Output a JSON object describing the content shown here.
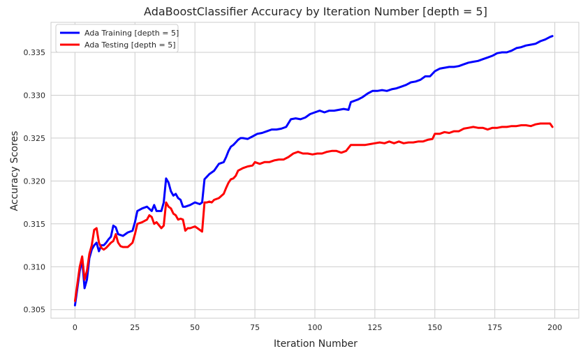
{
  "chart_data": {
    "type": "line",
    "title": "AdaBoostClassifier Accuracy by Iteration Number [depth = 5]",
    "xlabel": "Iteration Number",
    "ylabel": "Accuracy Scores",
    "xlim": [
      -10,
      210
    ],
    "ylim": [
      0.304,
      0.3385
    ],
    "xticks": [
      0,
      25,
      50,
      75,
      100,
      125,
      150,
      175,
      200
    ],
    "xtick_labels": [
      "0",
      "25",
      "50",
      "75",
      "100",
      "125",
      "150",
      "175",
      "200"
    ],
    "yticks": [
      0.305,
      0.31,
      0.315,
      0.32,
      0.325,
      0.33,
      0.335
    ],
    "ytick_labels": [
      "0.305",
      "0.310",
      "0.315",
      "0.320",
      "0.325",
      "0.330",
      "0.335"
    ],
    "grid": true,
    "legend_position": "top-left",
    "series": [
      {
        "name": "Ada Training [depth = 5]",
        "color": "#0000ff",
        "points": [
          [
            0,
            0.3055
          ],
          [
            1,
            0.3075
          ],
          [
            2,
            0.3095
          ],
          [
            3,
            0.3108
          ],
          [
            4,
            0.3075
          ],
          [
            5,
            0.3085
          ],
          [
            6,
            0.311
          ],
          [
            7,
            0.312
          ],
          [
            8,
            0.3125
          ],
          [
            9,
            0.3128
          ],
          [
            10,
            0.3118
          ],
          [
            11,
            0.3125
          ],
          [
            12,
            0.3125
          ],
          [
            13,
            0.3128
          ],
          [
            14,
            0.3132
          ],
          [
            15,
            0.3135
          ],
          [
            16,
            0.3148
          ],
          [
            17,
            0.3146
          ],
          [
            18,
            0.3138
          ],
          [
            19,
            0.3137
          ],
          [
            20,
            0.3136
          ],
          [
            22,
            0.314
          ],
          [
            24,
            0.3142
          ],
          [
            25,
            0.3152
          ],
          [
            26,
            0.3165
          ],
          [
            28,
            0.3168
          ],
          [
            30,
            0.317
          ],
          [
            32,
            0.3165
          ],
          [
            33,
            0.3172
          ],
          [
            34,
            0.3165
          ],
          [
            36,
            0.3165
          ],
          [
            37,
            0.3175
          ],
          [
            38,
            0.3203
          ],
          [
            39,
            0.3198
          ],
          [
            40,
            0.3188
          ],
          [
            41,
            0.3183
          ],
          [
            42,
            0.3185
          ],
          [
            43,
            0.318
          ],
          [
            44,
            0.3178
          ],
          [
            45,
            0.317
          ],
          [
            46,
            0.317
          ],
          [
            48,
            0.3172
          ],
          [
            50,
            0.3175
          ],
          [
            52,
            0.3173
          ],
          [
            53,
            0.3175
          ],
          [
            54,
            0.3202
          ],
          [
            55,
            0.3205
          ],
          [
            56,
            0.3208
          ],
          [
            57,
            0.321
          ],
          [
            58,
            0.3212
          ],
          [
            60,
            0.322
          ],
          [
            62,
            0.3222
          ],
          [
            63,
            0.3228
          ],
          [
            64,
            0.3235
          ],
          [
            65,
            0.324
          ],
          [
            66,
            0.3242
          ],
          [
            67,
            0.3245
          ],
          [
            68,
            0.3248
          ],
          [
            69,
            0.325
          ],
          [
            70,
            0.325
          ],
          [
            72,
            0.3249
          ],
          [
            74,
            0.3252
          ],
          [
            76,
            0.3255
          ],
          [
            78,
            0.3256
          ],
          [
            80,
            0.3258
          ],
          [
            82,
            0.326
          ],
          [
            84,
            0.326
          ],
          [
            86,
            0.3261
          ],
          [
            88,
            0.3263
          ],
          [
            90,
            0.3272
          ],
          [
            92,
            0.3273
          ],
          [
            94,
            0.3272
          ],
          [
            96,
            0.3274
          ],
          [
            98,
            0.3278
          ],
          [
            100,
            0.328
          ],
          [
            102,
            0.3282
          ],
          [
            104,
            0.328
          ],
          [
            106,
            0.3282
          ],
          [
            108,
            0.3282
          ],
          [
            110,
            0.3283
          ],
          [
            112,
            0.3284
          ],
          [
            114,
            0.3283
          ],
          [
            115,
            0.3292
          ],
          [
            118,
            0.3295
          ],
          [
            120,
            0.3298
          ],
          [
            122,
            0.3302
          ],
          [
            124,
            0.3305
          ],
          [
            126,
            0.3305
          ],
          [
            128,
            0.3306
          ],
          [
            130,
            0.3305
          ],
          [
            132,
            0.3307
          ],
          [
            134,
            0.3308
          ],
          [
            136,
            0.331
          ],
          [
            138,
            0.3312
          ],
          [
            140,
            0.3315
          ],
          [
            142,
            0.3316
          ],
          [
            144,
            0.3318
          ],
          [
            146,
            0.3322
          ],
          [
            148,
            0.3322
          ],
          [
            150,
            0.3328
          ],
          [
            152,
            0.3331
          ],
          [
            154,
            0.3332
          ],
          [
            156,
            0.3333
          ],
          [
            158,
            0.3333
          ],
          [
            160,
            0.3334
          ],
          [
            162,
            0.3336
          ],
          [
            164,
            0.3338
          ],
          [
            166,
            0.3339
          ],
          [
            168,
            0.334
          ],
          [
            170,
            0.3342
          ],
          [
            172,
            0.3344
          ],
          [
            174,
            0.3346
          ],
          [
            176,
            0.3349
          ],
          [
            178,
            0.335
          ],
          [
            180,
            0.335
          ],
          [
            182,
            0.3352
          ],
          [
            184,
            0.3355
          ],
          [
            186,
            0.3356
          ],
          [
            188,
            0.3358
          ],
          [
            190,
            0.3359
          ],
          [
            192,
            0.336
          ],
          [
            194,
            0.3363
          ],
          [
            196,
            0.3365
          ],
          [
            198,
            0.3368
          ],
          [
            199,
            0.3369
          ]
        ]
      },
      {
        "name": "Ada Testing [depth = 5]",
        "color": "#ff0000",
        "points": [
          [
            0,
            0.306
          ],
          [
            1,
            0.308
          ],
          [
            2,
            0.31
          ],
          [
            3,
            0.3112
          ],
          [
            4,
            0.3085
          ],
          [
            5,
            0.3095
          ],
          [
            6,
            0.3115
          ],
          [
            7,
            0.3125
          ],
          [
            8,
            0.3143
          ],
          [
            9,
            0.3145
          ],
          [
            10,
            0.3128
          ],
          [
            11,
            0.3122
          ],
          [
            12,
            0.312
          ],
          [
            13,
            0.3122
          ],
          [
            14,
            0.3125
          ],
          [
            15,
            0.3128
          ],
          [
            16,
            0.313
          ],
          [
            17,
            0.3138
          ],
          [
            18,
            0.3128
          ],
          [
            19,
            0.3124
          ],
          [
            20,
            0.3123
          ],
          [
            22,
            0.3123
          ],
          [
            24,
            0.3128
          ],
          [
            25,
            0.3138
          ],
          [
            26,
            0.315
          ],
          [
            28,
            0.3152
          ],
          [
            30,
            0.3155
          ],
          [
            31,
            0.316
          ],
          [
            32,
            0.3158
          ],
          [
            33,
            0.315
          ],
          [
            34,
            0.3152
          ],
          [
            36,
            0.3145
          ],
          [
            37,
            0.3148
          ],
          [
            38,
            0.3175
          ],
          [
            39,
            0.317
          ],
          [
            40,
            0.3168
          ],
          [
            41,
            0.3162
          ],
          [
            42,
            0.316
          ],
          [
            43,
            0.3155
          ],
          [
            44,
            0.3156
          ],
          [
            45,
            0.3155
          ],
          [
            46,
            0.3142
          ],
          [
            47,
            0.3145
          ],
          [
            48,
            0.3145
          ],
          [
            50,
            0.3147
          ],
          [
            52,
            0.3143
          ],
          [
            53,
            0.3141
          ],
          [
            54,
            0.3175
          ],
          [
            55,
            0.3175
          ],
          [
            56,
            0.3176
          ],
          [
            57,
            0.3175
          ],
          [
            58,
            0.3178
          ],
          [
            60,
            0.318
          ],
          [
            62,
            0.3185
          ],
          [
            63,
            0.3192
          ],
          [
            64,
            0.3198
          ],
          [
            65,
            0.3202
          ],
          [
            66,
            0.3203
          ],
          [
            67,
            0.3206
          ],
          [
            68,
            0.3212
          ],
          [
            70,
            0.3215
          ],
          [
            72,
            0.3217
          ],
          [
            74,
            0.3218
          ],
          [
            75,
            0.3222
          ],
          [
            77,
            0.322
          ],
          [
            79,
            0.3222
          ],
          [
            81,
            0.3222
          ],
          [
            83,
            0.3224
          ],
          [
            85,
            0.3225
          ],
          [
            87,
            0.3225
          ],
          [
            89,
            0.3228
          ],
          [
            91,
            0.3232
          ],
          [
            93,
            0.3234
          ],
          [
            95,
            0.3232
          ],
          [
            97,
            0.3232
          ],
          [
            99,
            0.3231
          ],
          [
            101,
            0.3232
          ],
          [
            103,
            0.3232
          ],
          [
            105,
            0.3234
          ],
          [
            107,
            0.3235
          ],
          [
            109,
            0.3235
          ],
          [
            111,
            0.3233
          ],
          [
            113,
            0.3235
          ],
          [
            115,
            0.3242
          ],
          [
            117,
            0.3242
          ],
          [
            119,
            0.3242
          ],
          [
            121,
            0.3242
          ],
          [
            123,
            0.3243
          ],
          [
            125,
            0.3244
          ],
          [
            127,
            0.3245
          ],
          [
            129,
            0.3244
          ],
          [
            131,
            0.3246
          ],
          [
            133,
            0.3244
          ],
          [
            135,
            0.3246
          ],
          [
            137,
            0.3244
          ],
          [
            139,
            0.3245
          ],
          [
            141,
            0.3245
          ],
          [
            143,
            0.3246
          ],
          [
            145,
            0.3246
          ],
          [
            147,
            0.3248
          ],
          [
            149,
            0.3249
          ],
          [
            150,
            0.3255
          ],
          [
            152,
            0.3255
          ],
          [
            154,
            0.3257
          ],
          [
            156,
            0.3256
          ],
          [
            158,
            0.3258
          ],
          [
            160,
            0.3258
          ],
          [
            162,
            0.3261
          ],
          [
            164,
            0.3262
          ],
          [
            166,
            0.3263
          ],
          [
            168,
            0.3262
          ],
          [
            170,
            0.3262
          ],
          [
            172,
            0.326
          ],
          [
            174,
            0.3262
          ],
          [
            176,
            0.3262
          ],
          [
            178,
            0.3263
          ],
          [
            180,
            0.3263
          ],
          [
            182,
            0.3264
          ],
          [
            184,
            0.3264
          ],
          [
            186,
            0.3265
          ],
          [
            188,
            0.3265
          ],
          [
            190,
            0.3264
          ],
          [
            192,
            0.3266
          ],
          [
            194,
            0.3267
          ],
          [
            196,
            0.3267
          ],
          [
            198,
            0.3267
          ],
          [
            199,
            0.3263
          ]
        ]
      }
    ]
  }
}
